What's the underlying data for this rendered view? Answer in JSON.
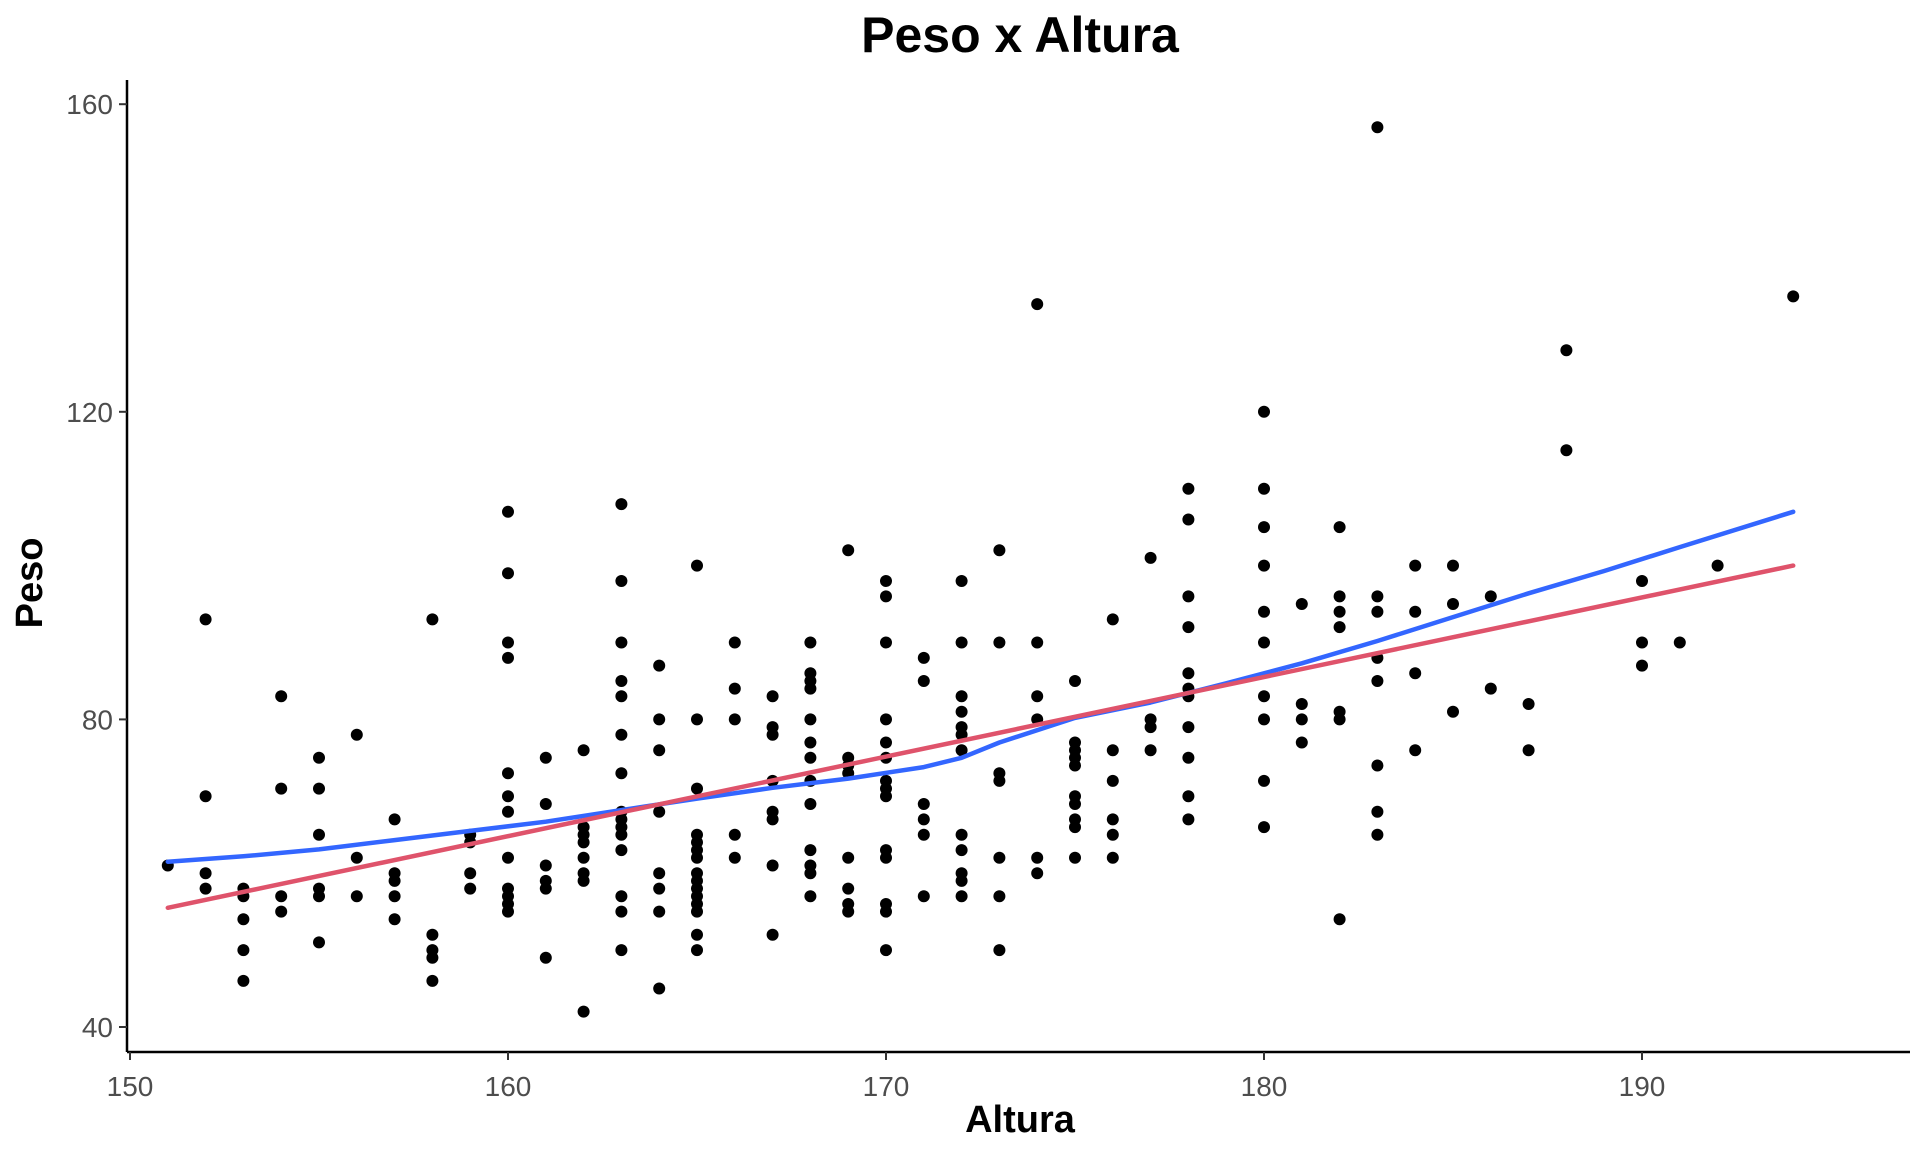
{
  "chart_data": {
    "type": "scatter",
    "title": "Peso x Altura",
    "xlabel": "Altura",
    "ylabel": "Peso",
    "xlim": [
      148.5,
      196.5
    ],
    "ylim": [
      37,
      163
    ],
    "x_ticks": [
      150,
      160,
      170,
      180,
      190
    ],
    "y_ticks": [
      40,
      80,
      120,
      160
    ],
    "grid": false,
    "legend": "none",
    "colors": {
      "points": "#000000",
      "loess": "#3366ff",
      "linear": "#df536b",
      "axis": "#000000"
    },
    "points": [
      [
        151,
        61
      ],
      [
        152,
        93
      ],
      [
        152,
        70
      ],
      [
        152,
        60
      ],
      [
        152,
        58
      ],
      [
        153,
        58
      ],
      [
        153,
        57
      ],
      [
        153,
        54
      ],
      [
        153,
        50
      ],
      [
        153,
        46
      ],
      [
        154,
        83
      ],
      [
        154,
        71
      ],
      [
        154,
        57
      ],
      [
        154,
        55
      ],
      [
        155,
        75
      ],
      [
        155,
        71
      ],
      [
        155,
        65
      ],
      [
        155,
        58
      ],
      [
        155,
        57
      ],
      [
        155,
        51
      ],
      [
        156,
        78
      ],
      [
        156,
        62
      ],
      [
        156,
        57
      ],
      [
        157,
        67
      ],
      [
        157,
        60
      ],
      [
        157,
        59
      ],
      [
        157,
        57
      ],
      [
        157,
        54
      ],
      [
        158,
        93
      ],
      [
        158,
        52
      ],
      [
        158,
        50
      ],
      [
        158,
        49
      ],
      [
        158,
        46
      ],
      [
        159,
        65
      ],
      [
        159,
        64
      ],
      [
        159,
        60
      ],
      [
        159,
        58
      ],
      [
        160,
        107
      ],
      [
        160,
        99
      ],
      [
        160,
        90
      ],
      [
        160,
        88
      ],
      [
        160,
        73
      ],
      [
        160,
        70
      ],
      [
        160,
        68
      ],
      [
        160,
        62
      ],
      [
        160,
        58
      ],
      [
        160,
        57
      ],
      [
        160,
        56
      ],
      [
        160,
        55
      ],
      [
        161,
        75
      ],
      [
        161,
        69
      ],
      [
        161,
        61
      ],
      [
        161,
        59
      ],
      [
        161,
        58
      ],
      [
        161,
        49
      ],
      [
        162,
        76
      ],
      [
        162,
        66
      ],
      [
        162,
        65
      ],
      [
        162,
        64
      ],
      [
        162,
        62
      ],
      [
        162,
        60
      ],
      [
        162,
        59
      ],
      [
        162,
        42
      ],
      [
        163,
        108
      ],
      [
        163,
        98
      ],
      [
        163,
        90
      ],
      [
        163,
        85
      ],
      [
        163,
        83
      ],
      [
        163,
        78
      ],
      [
        163,
        73
      ],
      [
        163,
        68
      ],
      [
        163,
        67
      ],
      [
        163,
        66
      ],
      [
        163,
        65
      ],
      [
        163,
        63
      ],
      [
        163,
        57
      ],
      [
        163,
        55
      ],
      [
        163,
        50
      ],
      [
        164,
        87
      ],
      [
        164,
        80
      ],
      [
        164,
        76
      ],
      [
        164,
        68
      ],
      [
        164,
        60
      ],
      [
        164,
        58
      ],
      [
        164,
        55
      ],
      [
        164,
        45
      ],
      [
        165,
        100
      ],
      [
        165,
        80
      ],
      [
        165,
        71
      ],
      [
        165,
        65
      ],
      [
        165,
        64
      ],
      [
        165,
        63
      ],
      [
        165,
        62
      ],
      [
        165,
        60
      ],
      [
        165,
        59
      ],
      [
        165,
        58
      ],
      [
        165,
        57
      ],
      [
        165,
        56
      ],
      [
        165,
        55
      ],
      [
        165,
        52
      ],
      [
        165,
        50
      ],
      [
        166,
        90
      ],
      [
        166,
        84
      ],
      [
        166,
        80
      ],
      [
        166,
        65
      ],
      [
        166,
        62
      ],
      [
        167,
        83
      ],
      [
        167,
        79
      ],
      [
        167,
        78
      ],
      [
        167,
        72
      ],
      [
        167,
        68
      ],
      [
        167,
        67
      ],
      [
        167,
        61
      ],
      [
        167,
        52
      ],
      [
        168,
        90
      ],
      [
        168,
        86
      ],
      [
        168,
        85
      ],
      [
        168,
        84
      ],
      [
        168,
        80
      ],
      [
        168,
        77
      ],
      [
        168,
        75
      ],
      [
        168,
        72
      ],
      [
        168,
        69
      ],
      [
        168,
        63
      ],
      [
        168,
        61
      ],
      [
        168,
        60
      ],
      [
        168,
        57
      ],
      [
        169,
        102
      ],
      [
        169,
        75
      ],
      [
        169,
        74
      ],
      [
        169,
        73
      ],
      [
        169,
        62
      ],
      [
        169,
        58
      ],
      [
        169,
        56
      ],
      [
        169,
        55
      ],
      [
        170,
        98
      ],
      [
        170,
        96
      ],
      [
        170,
        90
      ],
      [
        170,
        80
      ],
      [
        170,
        77
      ],
      [
        170,
        75
      ],
      [
        170,
        72
      ],
      [
        170,
        71
      ],
      [
        170,
        70
      ],
      [
        170,
        63
      ],
      [
        170,
        62
      ],
      [
        170,
        56
      ],
      [
        170,
        55
      ],
      [
        170,
        50
      ],
      [
        171,
        88
      ],
      [
        171,
        85
      ],
      [
        171,
        69
      ],
      [
        171,
        67
      ],
      [
        171,
        65
      ],
      [
        171,
        57
      ],
      [
        172,
        98
      ],
      [
        172,
        90
      ],
      [
        172,
        83
      ],
      [
        172,
        81
      ],
      [
        172,
        79
      ],
      [
        172,
        78
      ],
      [
        172,
        76
      ],
      [
        172,
        65
      ],
      [
        172,
        63
      ],
      [
        172,
        60
      ],
      [
        172,
        59
      ],
      [
        172,
        57
      ],
      [
        173,
        102
      ],
      [
        173,
        90
      ],
      [
        173,
        73
      ],
      [
        173,
        72
      ],
      [
        173,
        62
      ],
      [
        173,
        57
      ],
      [
        173,
        50
      ],
      [
        174,
        134
      ],
      [
        174,
        90
      ],
      [
        174,
        83
      ],
      [
        174,
        80
      ],
      [
        174,
        62
      ],
      [
        174,
        60
      ],
      [
        175,
        85
      ],
      [
        175,
        77
      ],
      [
        175,
        76
      ],
      [
        175,
        75
      ],
      [
        175,
        74
      ],
      [
        175,
        70
      ],
      [
        175,
        69
      ],
      [
        175,
        67
      ],
      [
        175,
        66
      ],
      [
        175,
        62
      ],
      [
        176,
        93
      ],
      [
        176,
        76
      ],
      [
        176,
        72
      ],
      [
        176,
        67
      ],
      [
        176,
        65
      ],
      [
        176,
        62
      ],
      [
        177,
        101
      ],
      [
        177,
        80
      ],
      [
        177,
        79
      ],
      [
        177,
        76
      ],
      [
        178,
        110
      ],
      [
        178,
        106
      ],
      [
        178,
        96
      ],
      [
        178,
        92
      ],
      [
        178,
        86
      ],
      [
        178,
        84
      ],
      [
        178,
        83
      ],
      [
        178,
        79
      ],
      [
        178,
        75
      ],
      [
        178,
        70
      ],
      [
        178,
        67
      ],
      [
        180,
        120
      ],
      [
        180,
        110
      ],
      [
        180,
        105
      ],
      [
        180,
        100
      ],
      [
        180,
        94
      ],
      [
        180,
        90
      ],
      [
        180,
        83
      ],
      [
        180,
        80
      ],
      [
        180,
        72
      ],
      [
        180,
        66
      ],
      [
        181,
        95
      ],
      [
        181,
        82
      ],
      [
        181,
        80
      ],
      [
        181,
        77
      ],
      [
        182,
        105
      ],
      [
        182,
        96
      ],
      [
        182,
        94
      ],
      [
        182,
        92
      ],
      [
        182,
        81
      ],
      [
        182,
        80
      ],
      [
        182,
        54
      ],
      [
        183,
        157
      ],
      [
        183,
        96
      ],
      [
        183,
        94
      ],
      [
        183,
        88
      ],
      [
        183,
        85
      ],
      [
        183,
        74
      ],
      [
        183,
        68
      ],
      [
        183,
        65
      ],
      [
        184,
        100
      ],
      [
        184,
        94
      ],
      [
        184,
        86
      ],
      [
        184,
        76
      ],
      [
        185,
        100
      ],
      [
        185,
        95
      ],
      [
        185,
        81
      ],
      [
        186,
        96
      ],
      [
        186,
        84
      ],
      [
        187,
        82
      ],
      [
        187,
        76
      ],
      [
        188,
        128
      ],
      [
        188,
        115
      ],
      [
        190,
        98
      ],
      [
        190,
        90
      ],
      [
        190,
        87
      ],
      [
        191,
        90
      ],
      [
        192,
        100
      ],
      [
        194,
        135
      ]
    ],
    "series": [
      {
        "curve": "loess",
        "x": [
          151,
          153,
          155,
          157,
          159,
          161,
          163,
          165,
          167,
          169,
          171,
          172,
          173,
          175,
          177,
          179,
          181,
          183,
          185,
          187,
          189,
          191,
          194
        ],
        "y": [
          61.5,
          62.2,
          63.1,
          64.3,
          65.5,
          66.7,
          68.2,
          69.7,
          71.1,
          72.3,
          73.8,
          75,
          77,
          80.2,
          82.2,
          84.7,
          87.3,
          90.2,
          93.3,
          96.4,
          99.3,
          102.4,
          107
        ]
      },
      {
        "curve": "linear",
        "x": [
          151,
          194
        ],
        "y": [
          55.5,
          100
        ]
      }
    ]
  }
}
